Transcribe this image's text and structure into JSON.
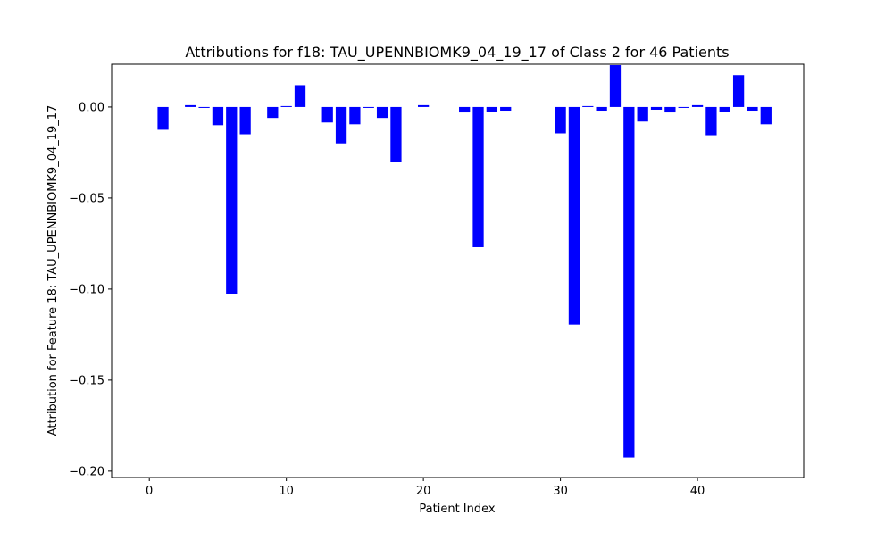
{
  "chart_data": {
    "type": "bar",
    "title": "Attributions for f18: TAU_UPENNBIOMK9_04_19_17 of Class 2 for 46 Patients",
    "xlabel": "Patient Index",
    "ylabel": "Attribution for Feature 18: TAU_UPENNBIOMK9_04_19_17",
    "bar_color": "#0000ff",
    "xlim": [
      -2.75,
      47.75
    ],
    "ylim": [
      -0.2035,
      0.0235
    ],
    "xticks": [
      0,
      10,
      20,
      30,
      40
    ],
    "xtick_labels": [
      "0",
      "10",
      "20",
      "30",
      "40"
    ],
    "yticks": [
      0.0,
      -0.05,
      -0.1,
      -0.15,
      -0.2
    ],
    "ytick_labels": [
      "0.00",
      "−0.05",
      "−0.10",
      "−0.15",
      "−0.20"
    ],
    "grid": false,
    "x": [
      0,
      1,
      2,
      3,
      4,
      5,
      6,
      7,
      8,
      9,
      10,
      11,
      12,
      13,
      14,
      15,
      16,
      17,
      18,
      19,
      20,
      21,
      22,
      23,
      24,
      25,
      26,
      27,
      28,
      29,
      30,
      31,
      32,
      33,
      34,
      35,
      36,
      37,
      38,
      39,
      40,
      41,
      42,
      43,
      44,
      45
    ],
    "values": [
      0,
      -0.0125,
      0,
      0.001,
      -0.0005,
      -0.01,
      -0.1025,
      -0.015,
      0,
      -0.006,
      0.0005,
      0.012,
      0,
      -0.0085,
      -0.02,
      -0.0095,
      -0.0005,
      -0.006,
      -0.03,
      0,
      0.001,
      0,
      0,
      -0.003,
      -0.077,
      -0.0025,
      -0.002,
      0,
      0,
      0,
      -0.0145,
      -0.1195,
      0.0005,
      -0.002,
      0.023,
      -0.1925,
      -0.008,
      -0.0015,
      -0.003,
      -0.0005,
      0.001,
      -0.0155,
      -0.0025,
      0.0175,
      -0.002,
      -0.0095
    ]
  }
}
